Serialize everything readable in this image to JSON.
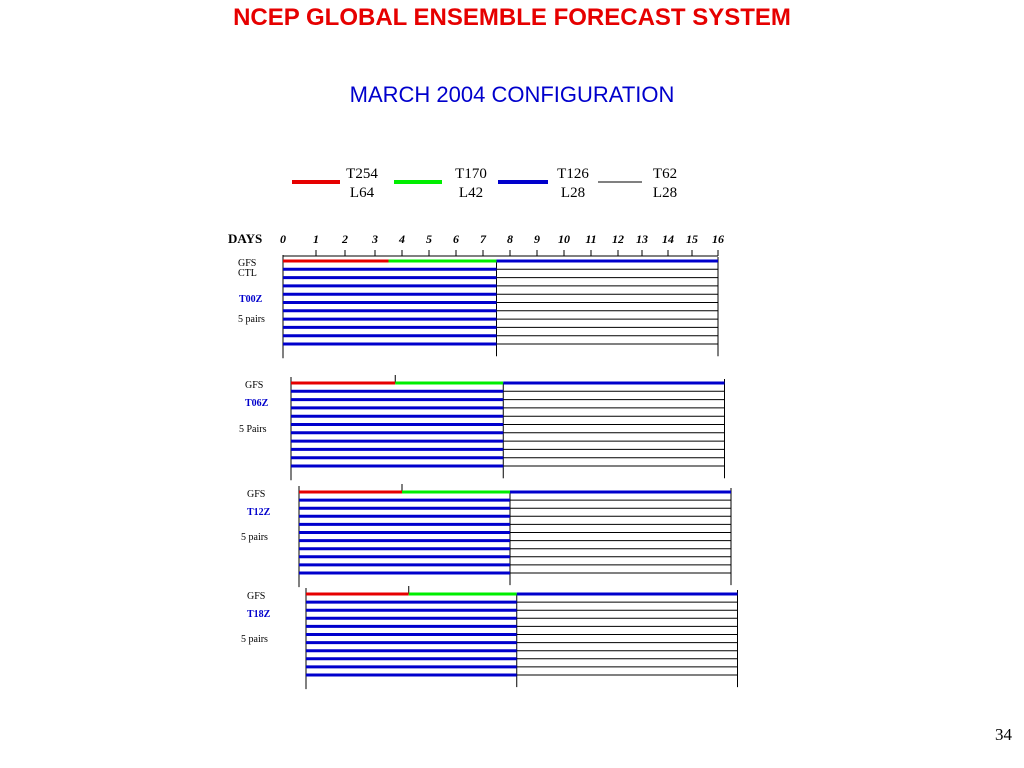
{
  "title": "NCEP GLOBAL ENSEMBLE FORECAST SYSTEM",
  "subtitle": "MARCH 2004 CONFIGURATION",
  "page_number": "34",
  "legend": [
    {
      "top": "T254",
      "bottom": "L64",
      "color": "#e60000"
    },
    {
      "top": "T170",
      "bottom": "L42",
      "color": "#00ee00"
    },
    {
      "top": "T126",
      "bottom": "L28",
      "color": "#0000cc"
    },
    {
      "top": "T62",
      "bottom": "L28",
      "color": "#000000"
    }
  ],
  "days_label": "DAYS",
  "day_ticks": [
    "0",
    "1",
    "2",
    "3",
    "4",
    "5",
    "6",
    "7",
    "8",
    "9",
    "10",
    "11",
    "12",
    "13",
    "14",
    "15",
    "16"
  ],
  "cycles": [
    {
      "gfs": "GFS",
      "ctl": "CTL",
      "cycle": "T00Z",
      "pairs": "5 pairs",
      "offset_days": 0
    },
    {
      "gfs": "GFS",
      "ctl": "",
      "cycle": "T06Z",
      "pairs": "5 Pairs",
      "offset_days": 0.25
    },
    {
      "gfs": "GFS",
      "ctl": "",
      "cycle": "T12Z",
      "pairs": "5 pairs",
      "offset_days": 0.5
    },
    {
      "gfs": "GFS",
      "ctl": "",
      "cycle": "T18Z",
      "pairs": "5 pairs",
      "offset_days": 0.75
    }
  ],
  "resolution_changes": {
    "gfs_t254_end_day": 3.5,
    "gfs_t170_end_day": 7.5,
    "ensemble_t126_end_day": 7.5,
    "forecast_end_day": 16
  },
  "colors": {
    "red": "#e60000",
    "green": "#00ee00",
    "blue": "#0000cc",
    "cycle_label": "#0000cc"
  }
}
